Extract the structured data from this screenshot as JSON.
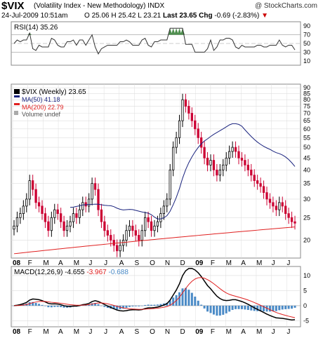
{
  "header": {
    "ticker": "$VIX",
    "name": "(Volatility Index - New Methodology) INDX",
    "brand": "@ StockCharts.com",
    "date": "24-Jul-2009 10:51am",
    "open_label": "O",
    "open": "25.06",
    "high_label": "H",
    "high": "25.42",
    "low_label": "L",
    "low": "23.21",
    "last_label": "Last",
    "last": "23.65",
    "chg_label": "Chg",
    "chg": "-0.69 (-2.83%)",
    "chg_arrow": "▼"
  },
  "colors": {
    "up": "#000000",
    "down": "#cc0033",
    "ma50": "#1a237e",
    "ma200": "#e02020",
    "macd": "#000000",
    "signal": "#e02020",
    "hist": "#4a8ac6",
    "rsi_fill": "#4f8f4f",
    "grid": "#dddddd"
  },
  "rsi": {
    "label": "RSI(14) 35.26",
    "ticks": [
      "90",
      "70",
      "50",
      "30",
      "10"
    ]
  },
  "price": {
    "legend_main": "$VIX (Weekly) 23.65",
    "legend_ma50": "MA(50) 41.18",
    "legend_ma200": "MA(200) 22.79",
    "legend_volume": "Volume undef",
    "ticks": [
      "90",
      "85",
      "80",
      "75",
      "70",
      "65",
      "60",
      "55",
      "50",
      "45",
      "40",
      "35",
      "30",
      "25",
      "20"
    ]
  },
  "macd": {
    "label": "MACD(12,26,9)",
    "macd_val": "-4.655",
    "signal_val": "-3.967",
    "hist_val": "-0.688",
    "ticks": [
      "10",
      "5",
      "0",
      "-5"
    ]
  },
  "xaxis": {
    "labels": [
      "08",
      "F",
      "M",
      "A",
      "M",
      "J",
      "J",
      "A",
      "S",
      "O",
      "N",
      "D",
      "09",
      "F",
      "M",
      "A",
      "M",
      "J",
      "J"
    ]
  },
  "chart_data": {
    "type": "candlestick",
    "title": "$VIX (Volatility Index - New Methodology) INDX Weekly",
    "ylim": [
      17,
      92
    ],
    "scale": "log",
    "weeks_approx": [
      23,
      25,
      26,
      28,
      30,
      36,
      33,
      29,
      28,
      26,
      24,
      22,
      25,
      27,
      26,
      24,
      22,
      23,
      24,
      26,
      25,
      27,
      29,
      28,
      30,
      35,
      33,
      27,
      24,
      22,
      21,
      20,
      19,
      18,
      19,
      20,
      22,
      23,
      22,
      21,
      20,
      22,
      25,
      24,
      22,
      23,
      24,
      26,
      28,
      30,
      40,
      50,
      55,
      65,
      80,
      75,
      70,
      65,
      60,
      55,
      50,
      45,
      42,
      44,
      40,
      38,
      40,
      42,
      45,
      48,
      50,
      48,
      45,
      44,
      42,
      40,
      38,
      36,
      35,
      34,
      32,
      30,
      29,
      28,
      27,
      29,
      28,
      26,
      25,
      24,
      23.65
    ],
    "series": [
      {
        "name": "MA(50)",
        "last": 41.18
      },
      {
        "name": "MA(200)",
        "last": 22.79
      }
    ],
    "rsi_last": 35.26,
    "macd": {
      "macd": -4.655,
      "signal": -3.967,
      "histogram": -0.688
    }
  }
}
